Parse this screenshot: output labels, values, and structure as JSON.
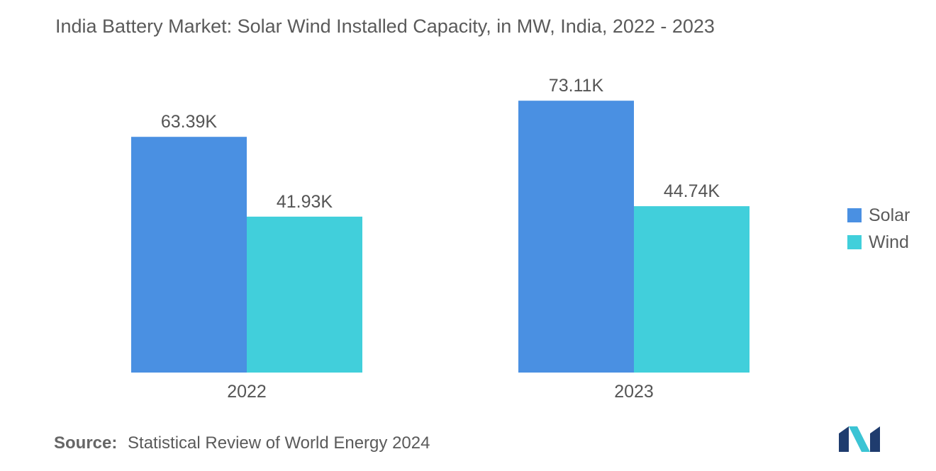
{
  "chart_data": {
    "type": "bar",
    "title": "India Battery Market: Solar  Wind Installed Capacity, in MW, India, 2022 - 2023",
    "categories": [
      "2022",
      "2023"
    ],
    "series": [
      {
        "name": "Solar",
        "values": [
          63.39,
          73.11
        ],
        "labels": [
          "63.39K",
          "73.11K"
        ],
        "color": "#4a90e2"
      },
      {
        "name": "Wind",
        "values": [
          41.93,
          44.74
        ],
        "labels": [
          "41.93K",
          "44.74K"
        ],
        "color": "#41cfdb"
      }
    ],
    "ylim": [
      0,
      80
    ],
    "unit": "K MW",
    "xlabel": "",
    "ylabel": "",
    "grid": false,
    "legend": "right"
  },
  "source": {
    "label": "Source:",
    "text": "Statistical Review of World Energy 2024"
  },
  "logo": {
    "icon": "mordor-intelligence-logo-icon"
  }
}
